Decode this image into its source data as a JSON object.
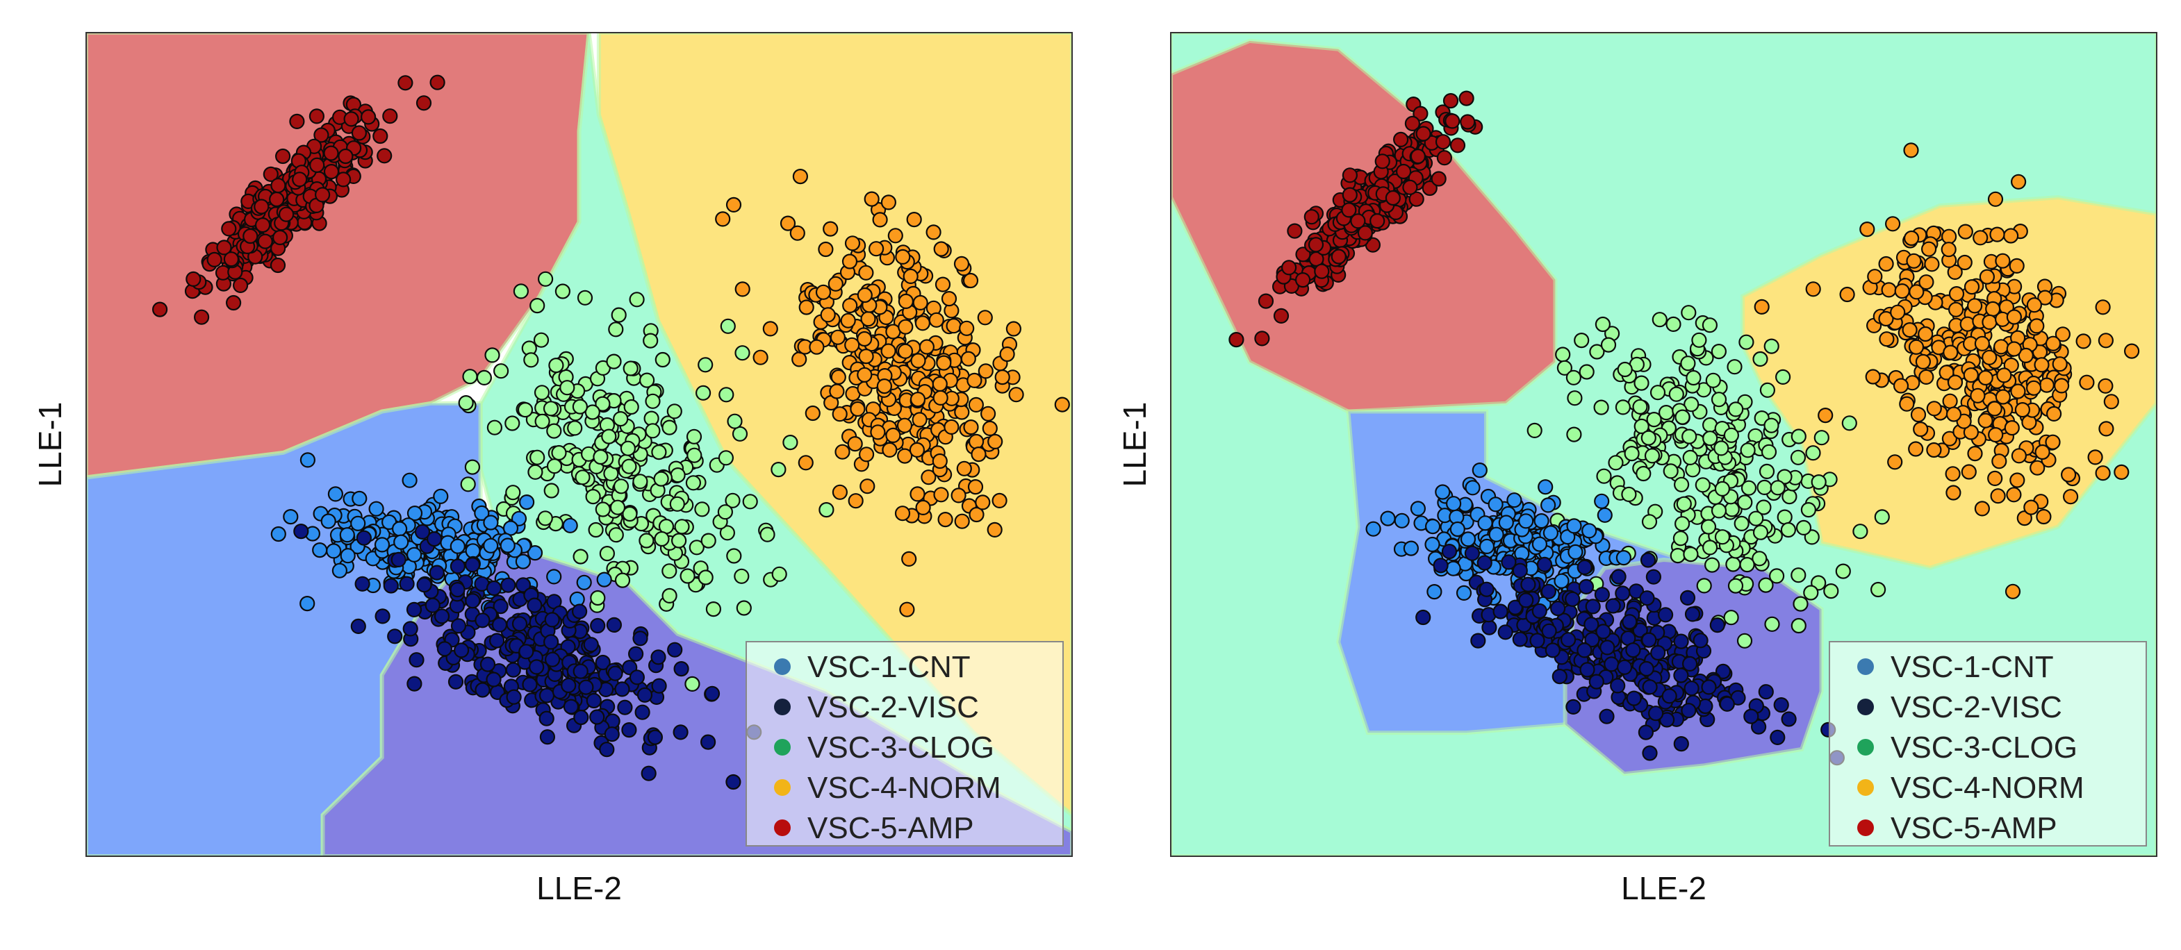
{
  "chart_data": [
    {
      "type": "scatter",
      "panel": "left",
      "title": "",
      "xlabel": "LLE-2",
      "ylabel": "LLE-1",
      "xlim": [
        0,
        100
      ],
      "ylim": [
        0,
        100
      ],
      "grid": false,
      "legend_position": "bottom-right",
      "legend": [
        {
          "label": "VSC-1-CNT",
          "color": "#3b7ab0"
        },
        {
          "label": "VSC-2-VISC",
          "color": "#14213d"
        },
        {
          "label": "VSC-3-CLOG",
          "color": "#1fa35b"
        },
        {
          "label": "VSC-4-NORM",
          "color": "#f2b418"
        },
        {
          "label": "VSC-5-AMP",
          "color": "#b80d0d"
        }
      ],
      "decision_regions": [
        {
          "class": "VSC-5-AMP",
          "color": "#e17b7b",
          "polygon": [
            [
              0,
              100
            ],
            [
              51,
              100
            ],
            [
              50,
              88
            ],
            [
              50,
              77
            ],
            [
              46,
              68
            ],
            [
              40,
              58
            ],
            [
              35,
              55
            ],
            [
              30,
              54
            ],
            [
              20,
              49
            ],
            [
              0,
              46
            ]
          ]
        },
        {
          "class": "VSC-4-NORM",
          "color": "#fde47f",
          "polygon": [
            [
              52,
              100
            ],
            [
              100,
              100
            ],
            [
              100,
              5
            ],
            [
              90,
              15
            ],
            [
              75,
              35
            ],
            [
              65,
              48
            ],
            [
              58,
              65
            ],
            [
              55,
              78
            ],
            [
              52,
              90
            ]
          ]
        },
        {
          "class": "VSC-3-CLOG",
          "color": "#a6fbd6",
          "polygon": [
            [
              51,
              100
            ],
            [
              52,
              90
            ],
            [
              55,
              78
            ],
            [
              58,
              65
            ],
            [
              65,
              48
            ],
            [
              75,
              35
            ],
            [
              90,
              15
            ],
            [
              100,
              5
            ],
            [
              100,
              3
            ],
            [
              92,
              8
            ],
            [
              75,
              20
            ],
            [
              60,
              27
            ],
            [
              55,
              33
            ],
            [
              50,
              35
            ],
            [
              42,
              38
            ],
            [
              40,
              47
            ],
            [
              40,
              55
            ],
            [
              46,
              68
            ],
            [
              50,
              77
            ],
            [
              50,
              88
            ]
          ]
        },
        {
          "class": "VSC-1-CNT",
          "color": "#7ea6fb",
          "polygon": [
            [
              0,
              46
            ],
            [
              20,
              49
            ],
            [
              30,
              54
            ],
            [
              35,
              55
            ],
            [
              40,
              55
            ],
            [
              40,
              47
            ],
            [
              40,
              38
            ],
            [
              34,
              30
            ],
            [
              30,
              22
            ],
            [
              30,
              12
            ],
            [
              24,
              5
            ],
            [
              24,
              0
            ],
            [
              0,
              0
            ]
          ]
        },
        {
          "class": "VSC-2-VISC",
          "color": "#8480e2",
          "polygon": [
            [
              24,
              0
            ],
            [
              100,
              0
            ],
            [
              100,
              3
            ],
            [
              92,
              8
            ],
            [
              75,
              20
            ],
            [
              60,
              27
            ],
            [
              55,
              33
            ],
            [
              50,
              35
            ],
            [
              42,
              38
            ],
            [
              40,
              38
            ],
            [
              34,
              30
            ],
            [
              30,
              22
            ],
            [
              30,
              12
            ],
            [
              24,
              5
            ]
          ]
        }
      ],
      "clusters": [
        {
          "class": "VSC-5-AMP",
          "fill": "#a30f0f",
          "n": 320,
          "cx": 20,
          "cy": 79,
          "sx": 1.5,
          "sy": 6.2,
          "rot": 52,
          "seed": 11
        },
        {
          "class": "VSC-4-NORM",
          "fill": "#fb9a1c",
          "n": 340,
          "cx": 82,
          "cy": 60,
          "sx": 8.5,
          "sy": 5.0,
          "rot": 18,
          "seed": 23
        },
        {
          "class": "VSC-3-CLOG",
          "fill": "#a0fc9c",
          "n": 260,
          "cx": 55,
          "cy": 47,
          "sx": 9.0,
          "sy": 5.5,
          "rot": 28,
          "seed": 37
        },
        {
          "class": "VSC-1-CNT",
          "fill": "#2e8ff0",
          "n": 230,
          "cx": 35,
          "cy": 38,
          "sx": 5.5,
          "sy": 2.8,
          "rot": 80,
          "seed": 41
        },
        {
          "class": "VSC-2-VISC",
          "fill": "#0a1680",
          "n": 270,
          "cx": 45,
          "cy": 25,
          "sx": 8.0,
          "sy": 3.5,
          "rot": 55,
          "seed": 53
        }
      ]
    },
    {
      "type": "scatter",
      "panel": "right",
      "title": "",
      "xlabel": "LLE-2",
      "ylabel": "LLE-1",
      "xlim": [
        0,
        100
      ],
      "ylim": [
        0,
        100
      ],
      "grid": false,
      "legend_position": "bottom-right",
      "legend": [
        {
          "label": "VSC-1-CNT",
          "color": "#3b7ab0"
        },
        {
          "label": "VSC-2-VISC",
          "color": "#14213d"
        },
        {
          "label": "VSC-3-CLOG",
          "color": "#1fa35b"
        },
        {
          "label": "VSC-4-NORM",
          "color": "#f2b418"
        },
        {
          "label": "VSC-5-AMP",
          "color": "#b80d0d"
        }
      ],
      "decision_regions": [
        {
          "class": "VSC-3-CLOG",
          "color": "#a6fbd6",
          "polygon": [
            [
              0,
              100
            ],
            [
              100,
              100
            ],
            [
              100,
              0
            ],
            [
              0,
              0
            ]
          ]
        },
        {
          "class": "VSC-5-AMP",
          "color": "#e17b7b",
          "polygon": [
            [
              0,
              95
            ],
            [
              8,
              99
            ],
            [
              17,
              98
            ],
            [
              25,
              90
            ],
            [
              35,
              76
            ],
            [
              39,
              70
            ],
            [
              39,
              60
            ],
            [
              34,
              55
            ],
            [
              18,
              54
            ],
            [
              8,
              60
            ],
            [
              0,
              80
            ]
          ]
        },
        {
          "class": "VSC-4-NORM",
          "color": "#fde47f",
          "polygon": [
            [
              58,
              68
            ],
            [
              66,
              73
            ],
            [
              78,
              79
            ],
            [
              90,
              80
            ],
            [
              100,
              78
            ],
            [
              100,
              55
            ],
            [
              90,
              40
            ],
            [
              77,
              35
            ],
            [
              66,
              38
            ],
            [
              64,
              50
            ],
            [
              60,
              57
            ],
            [
              58,
              62
            ]
          ]
        },
        {
          "class": "VSC-1-CNT",
          "color": "#7ea6fb",
          "polygon": [
            [
              18,
              54
            ],
            [
              32,
              54
            ],
            [
              32,
              46
            ],
            [
              42,
              40
            ],
            [
              52,
              36
            ],
            [
              44,
              25
            ],
            [
              40,
              16
            ],
            [
              30,
              15
            ],
            [
              20,
              15
            ],
            [
              17,
              26
            ],
            [
              19,
              40
            ]
          ]
        },
        {
          "class": "VSC-2-VISC",
          "color": "#8480e2",
          "polygon": [
            [
              40,
              16
            ],
            [
              46,
              10
            ],
            [
              54,
              11
            ],
            [
              64,
              13
            ],
            [
              66,
              20
            ],
            [
              66,
              30
            ],
            [
              60,
              35
            ],
            [
              50,
              36
            ],
            [
              44,
              35
            ],
            [
              41,
              30
            ],
            [
              40,
              22
            ]
          ]
        }
      ],
      "clusters": [
        {
          "class": "VSC-5-AMP",
          "fill": "#a30f0f",
          "n": 320,
          "cx": 20,
          "cy": 79,
          "sx": 1.5,
          "sy": 6.2,
          "rot": 52,
          "seed": 61
        },
        {
          "class": "VSC-4-NORM",
          "fill": "#fb9a1c",
          "n": 340,
          "cx": 82,
          "cy": 60,
          "sx": 8.5,
          "sy": 5.0,
          "rot": 18,
          "seed": 73
        },
        {
          "class": "VSC-3-CLOG",
          "fill": "#a0fc9c",
          "n": 260,
          "cx": 55,
          "cy": 47,
          "sx": 9.0,
          "sy": 5.5,
          "rot": 28,
          "seed": 87
        },
        {
          "class": "VSC-1-CNT",
          "fill": "#2e8ff0",
          "n": 230,
          "cx": 35,
          "cy": 38,
          "sx": 5.5,
          "sy": 2.8,
          "rot": 80,
          "seed": 91
        },
        {
          "class": "VSC-2-VISC",
          "fill": "#0a1680",
          "n": 270,
          "cx": 45,
          "cy": 25,
          "sx": 8.0,
          "sy": 3.5,
          "rot": 55,
          "seed": 97
        }
      ]
    }
  ]
}
